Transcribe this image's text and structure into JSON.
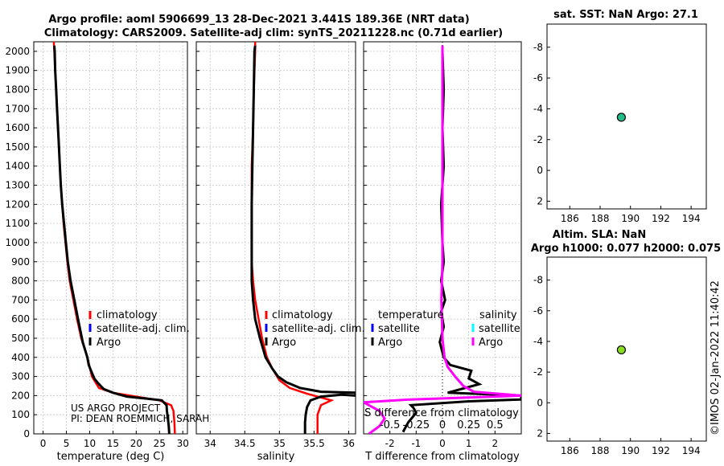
{
  "title_line1": "Argo profile: aoml 5906699_13 28-Dec-2021 3.441S 189.36E (NRT data)",
  "title_line2": "Climatology: CARS2009. Satellite-adj clim: synTS_20211228.nc (0.71d earlier)",
  "timestamp": "©IMOS 02-Jan-2022 11:40:42",
  "colors": {
    "climatology": "#ff0000",
    "satellite": "#0000ff",
    "argo": "#000000",
    "salinity_argo": "#ff00ff",
    "salinity_sat": "#00ffff",
    "grid": "#c8c8c8"
  },
  "legend_left": {
    "items": [
      "climatology",
      "satellite-adj. clim.",
      "Argo"
    ],
    "footnote1": "US ARGO PROJECT",
    "footnote2": "PI: DEAN ROEMMICH, SARAH"
  },
  "legend_mid": {
    "items": [
      "climatology",
      "satellite-adj. clim.",
      "Argo"
    ]
  },
  "legend_diff": {
    "temp_title": "temperature",
    "sal_title": "salinity",
    "temp_items": [
      "satellite",
      "Argo"
    ],
    "sal_items": [
      "satellite",
      "Argo"
    ]
  },
  "diff_panel": {
    "top_label": "S difference from climatology",
    "top_ticks": [
      "-0.5",
      "-0.25",
      "0",
      "0.25",
      "0.5"
    ],
    "top_tick_values": [
      -0.5,
      -0.25,
      0,
      0.25,
      0.5
    ],
    "top_xlim": [
      -0.75,
      0.75
    ]
  },
  "right_top": {
    "title": "sat. SST: NaN Argo: 27.1"
  },
  "right_bottom": {
    "title1": "Altim. SLA: NaN",
    "title2": "Argo h1000: 0.077 h2000: 0.075"
  },
  "chart_data": [
    {
      "type": "line",
      "name": "temperature",
      "xlabel": "temperature (deg C)",
      "ylabel": "",
      "xlim": [
        -2,
        31
      ],
      "ylim": [
        2050,
        0
      ],
      "xticks": [
        0,
        5,
        10,
        15,
        20,
        25,
        30
      ],
      "yticks": [
        0,
        100,
        200,
        300,
        400,
        500,
        600,
        700,
        800,
        900,
        1000,
        1100,
        1200,
        1300,
        1400,
        1500,
        1600,
        1700,
        1800,
        1900,
        2000
      ],
      "series": [
        {
          "name": "climatology",
          "color": "#ff0000",
          "points": [
            [
              28.3,
              0
            ],
            [
              28.2,
              60
            ],
            [
              28,
              120
            ],
            [
              27.5,
              150
            ],
            [
              25,
              175
            ],
            [
              20,
              195
            ],
            [
              15,
              215
            ],
            [
              12,
              240
            ],
            [
              10.5,
              300
            ],
            [
              9.5,
              400
            ],
            [
              8.2,
              500
            ],
            [
              7.3,
              600
            ],
            [
              6.5,
              700
            ],
            [
              5.7,
              800
            ],
            [
              5.2,
              900
            ],
            [
              4.8,
              1000
            ],
            [
              4.4,
              1100
            ],
            [
              4.1,
              1200
            ],
            [
              3.8,
              1300
            ],
            [
              3.6,
              1400
            ],
            [
              3.4,
              1500
            ],
            [
              3.2,
              1600
            ],
            [
              3.0,
              1700
            ],
            [
              2.8,
              1800
            ],
            [
              2.6,
              1900
            ],
            [
              2.4,
              2000
            ],
            [
              2.3,
              2050
            ]
          ]
        },
        {
          "name": "Argo",
          "color": "#000000",
          "points": [
            [
              27.1,
              0
            ],
            [
              27.0,
              40
            ],
            [
              26.8,
              80
            ],
            [
              26.6,
              120
            ],
            [
              26.5,
              150
            ],
            [
              25.5,
              175
            ],
            [
              22,
              185
            ],
            [
              18,
              195
            ],
            [
              15,
              215
            ],
            [
              13,
              235
            ],
            [
              11.8,
              265
            ],
            [
              11,
              290
            ],
            [
              10.3,
              330
            ],
            [
              9.8,
              360
            ],
            [
              9.5,
              400
            ],
            [
              8.5,
              480
            ],
            [
              7.5,
              600
            ],
            [
              6.7,
              700
            ],
            [
              5.9,
              800
            ],
            [
              5.3,
              900
            ],
            [
              4.9,
              1000
            ],
            [
              4.5,
              1100
            ],
            [
              4.1,
              1200
            ],
            [
              3.8,
              1300
            ],
            [
              3.6,
              1400
            ],
            [
              3.4,
              1500
            ],
            [
              3.2,
              1600
            ],
            [
              3.0,
              1700
            ],
            [
              2.8,
              1800
            ],
            [
              2.6,
              1900
            ],
            [
              2.5,
              2000
            ],
            [
              2.4,
              2030
            ]
          ]
        }
      ]
    },
    {
      "type": "line",
      "name": "salinity",
      "xlabel": "salinity",
      "ylabel": "",
      "xlim": [
        33.8,
        36.1
      ],
      "ylim": [
        2050,
        0
      ],
      "xticks": [
        34,
        34.5,
        35,
        35.5,
        36
      ],
      "xtick_labels": [
        "34",
        "34.5",
        "35",
        "35.5",
        "36"
      ],
      "yticks": [
        0,
        100,
        200,
        300,
        400,
        500,
        600,
        700,
        800,
        900,
        1000,
        1100,
        1200,
        1300,
        1400,
        1500,
        1600,
        1700,
        1800,
        1900,
        2000
      ],
      "series": [
        {
          "name": "climatology",
          "color": "#ff0000",
          "points": [
            [
              35.55,
              0
            ],
            [
              35.55,
              100
            ],
            [
              35.6,
              150
            ],
            [
              35.75,
              175
            ],
            [
              35.6,
              190
            ],
            [
              35.4,
              210
            ],
            [
              35.15,
              240
            ],
            [
              35.0,
              280
            ],
            [
              34.9,
              340
            ],
            [
              34.82,
              400
            ],
            [
              34.75,
              500
            ],
            [
              34.7,
              600
            ],
            [
              34.65,
              700
            ],
            [
              34.62,
              800
            ],
            [
              34.6,
              900
            ],
            [
              34.6,
              1000
            ],
            [
              34.6,
              1200
            ],
            [
              34.6,
              1400
            ],
            [
              34.62,
              1600
            ],
            [
              34.63,
              1800
            ],
            [
              34.65,
              2000
            ],
            [
              34.65,
              2050
            ]
          ]
        },
        {
          "name": "Argo",
          "color": "#000000",
          "points": [
            [
              35.37,
              0
            ],
            [
              35.37,
              60
            ],
            [
              35.38,
              100
            ],
            [
              35.4,
              140
            ],
            [
              35.45,
              175
            ],
            [
              35.6,
              195
            ],
            [
              35.9,
              205
            ],
            [
              36.1,
              200
            ],
            [
              36.1,
              215
            ],
            [
              35.6,
              220
            ],
            [
              35.3,
              240
            ],
            [
              35.1,
              270
            ],
            [
              34.98,
              300
            ],
            [
              34.9,
              340
            ],
            [
              34.8,
              400
            ],
            [
              34.72,
              500
            ],
            [
              34.65,
              600
            ],
            [
              34.62,
              700
            ],
            [
              34.6,
              800
            ],
            [
              34.6,
              1000
            ],
            [
              34.6,
              1200
            ],
            [
              34.61,
              1400
            ],
            [
              34.62,
              1600
            ],
            [
              34.63,
              1800
            ],
            [
              34.64,
              2000
            ],
            [
              34.65,
              2030
            ]
          ]
        }
      ]
    },
    {
      "type": "line",
      "name": "difference",
      "xlabel": "T difference from climatology",
      "ylabel": "",
      "xlim": [
        -3,
        3
      ],
      "ylim": [
        2050,
        0
      ],
      "xticks": [
        -2,
        -1,
        0,
        1,
        2
      ],
      "yticks": [
        0,
        100,
        200,
        300,
        400,
        500,
        600,
        700,
        800,
        900,
        1000,
        1100,
        1200,
        1300,
        1400,
        1500,
        1600,
        1700,
        1800,
        1900,
        2000
      ],
      "series": [
        {
          "name": "T Argo",
          "color": "#000000",
          "points": [
            [
              -1.5,
              10
            ],
            [
              -1.3,
              60
            ],
            [
              -1.0,
              110
            ],
            [
              -1.1,
              135
            ],
            [
              -1.2,
              150
            ],
            [
              1,
              170
            ],
            [
              3,
              180
            ],
            [
              3,
              200
            ],
            [
              0.2,
              215
            ],
            [
              1.4,
              260
            ],
            [
              1.0,
              290
            ],
            [
              1.1,
              330
            ],
            [
              0.3,
              360
            ],
            [
              0.05,
              400
            ],
            [
              -0.1,
              480
            ],
            [
              0.05,
              560
            ],
            [
              -0.05,
              640
            ],
            [
              0.1,
              700
            ],
            [
              -0.05,
              800
            ],
            [
              0.05,
              900
            ],
            [
              0,
              1000
            ],
            [
              -0.05,
              1200
            ],
            [
              0.05,
              1400
            ],
            [
              0,
              1600
            ],
            [
              0.05,
              1800
            ],
            [
              0,
              2000
            ],
            [
              0,
              2030
            ]
          ]
        },
        {
          "name": "S Argo",
          "color": "#ff00ff",
          "points": [
            [
              -0.7,
              0
            ],
            [
              -0.6,
              40
            ],
            [
              -0.55,
              80
            ],
            [
              -0.6,
              120
            ],
            [
              -0.75,
              165
            ],
            [
              -0.3,
              180
            ],
            [
              0.5,
              195
            ],
            [
              0.75,
              200
            ],
            [
              0.3,
              220
            ],
            [
              0.2,
              250
            ],
            [
              0.12,
              300
            ],
            [
              0.05,
              350
            ],
            [
              0.02,
              400
            ],
            [
              0,
              500
            ],
            [
              -0.01,
              700
            ],
            [
              0,
              900
            ],
            [
              0,
              1200
            ],
            [
              0,
              1600
            ],
            [
              0,
              2000
            ],
            [
              0,
              2030
            ]
          ]
        }
      ]
    },
    {
      "type": "scatter",
      "name": "sst-map",
      "xlim": [
        184.5,
        195
      ],
      "ylim": [
        -9.5,
        2.5
      ],
      "xticks": [
        186,
        188,
        190,
        192,
        194
      ],
      "yticks": [
        2,
        0,
        -2,
        -4,
        -6,
        -8
      ],
      "points": [
        {
          "x": 189.4,
          "y": -3.45,
          "color": "#22bb88"
        }
      ]
    },
    {
      "type": "scatter",
      "name": "sla-map",
      "xlim": [
        184.5,
        195
      ],
      "ylim": [
        -9.5,
        2.5
      ],
      "xticks": [
        186,
        188,
        190,
        192,
        194
      ],
      "yticks": [
        2,
        0,
        -2,
        -4,
        -6,
        -8
      ],
      "points": [
        {
          "x": 189.4,
          "y": -3.45,
          "color": "#88dd22"
        }
      ]
    }
  ]
}
